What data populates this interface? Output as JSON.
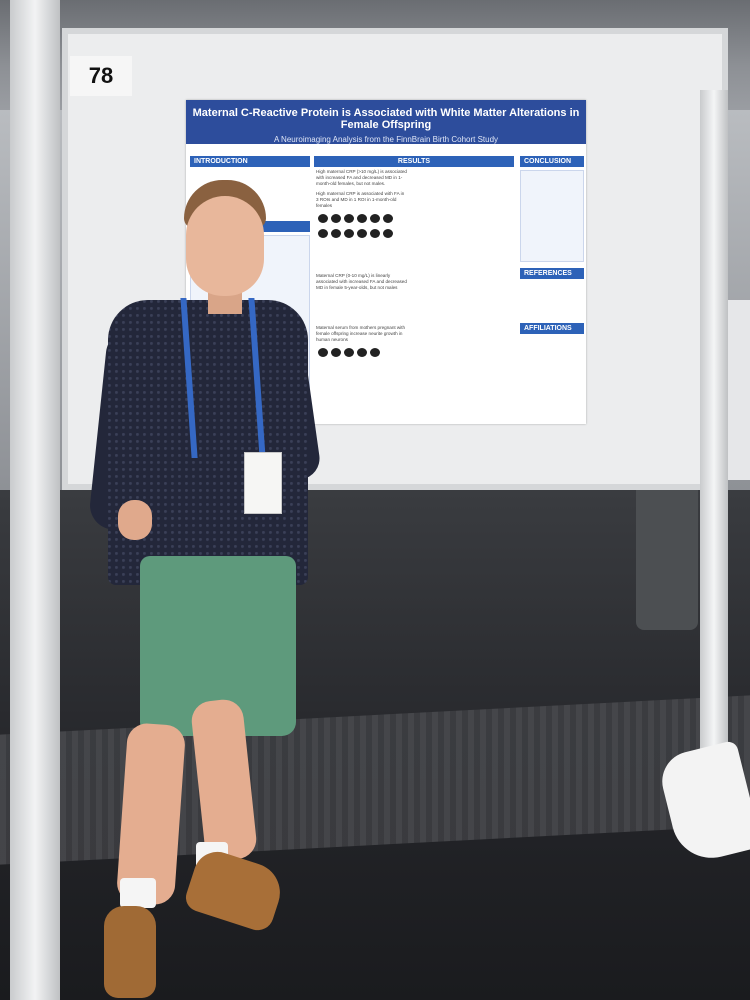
{
  "board_number": "78",
  "poster": {
    "title": "Maternal C-Reactive Protein is Associated with White Matter Alterations in Female Offspring",
    "subtitle": "A Neuroimaging Analysis from the FinnBrain Birth Cohort Study",
    "sections": {
      "introduction": "INTRODUCTION",
      "methods": "METHODS",
      "results": "RESULTS",
      "conclusion": "CONCLUSION",
      "references": "REFERENCES",
      "affiliations": "AFFILIATIONS"
    },
    "results_text": [
      "High maternal CRP (>10 mg/L) is associated with increased FA and decreased MD in 1-month-old females, but not males.",
      "High maternal CRP is associated with FA in 3 ROIs and MD in 1 ROI in 1-month-old females",
      "Maternal CRP (0-10 mg/L) is linearly associated with increased FA and decreased MD in female 5-year-olds, but not males",
      "Maternal serum from mothers pregnant with female offspring increase neurite growth in human neurons"
    ]
  },
  "colors": {
    "poster_title_bg": "#2d4d9c",
    "section_header_bg": "#2d62b8",
    "lanyard": "#3568c4"
  }
}
